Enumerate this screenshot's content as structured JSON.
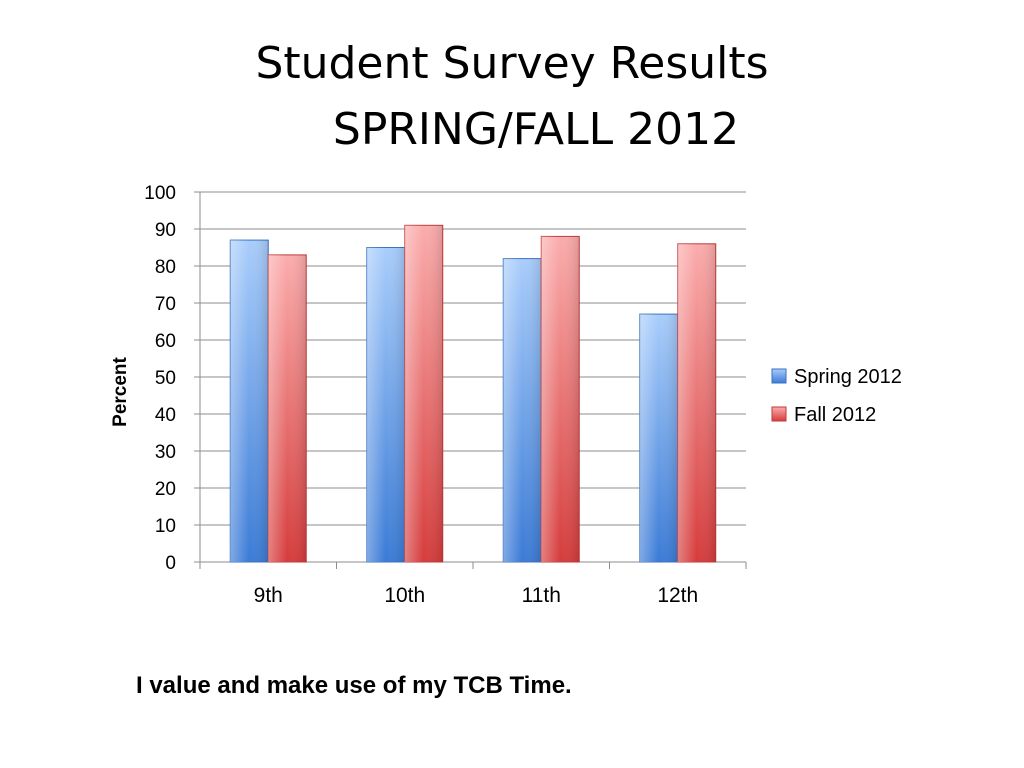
{
  "slide": {
    "title_line1": "Student Survey Results",
    "title_line2": "SPRING/FALL 2012",
    "caption": "I value and make use of my TCB Time."
  },
  "chart_data": {
    "type": "bar",
    "categories": [
      "9th",
      "10th",
      "11th",
      "12th"
    ],
    "series": [
      {
        "name": "Spring 2012",
        "values": [
          87,
          85,
          82,
          67
        ],
        "color": "#4f8ede"
      },
      {
        "name": "Fall 2012",
        "values": [
          83,
          91,
          88,
          86
        ],
        "color": "#e05656"
      }
    ],
    "xlabel": "",
    "ylabel": "Percent",
    "ylim": [
      0,
      100
    ],
    "yticks": [
      0,
      10,
      20,
      30,
      40,
      50,
      60,
      70,
      80,
      90,
      100
    ],
    "grid": true,
    "legend_position": "right"
  }
}
